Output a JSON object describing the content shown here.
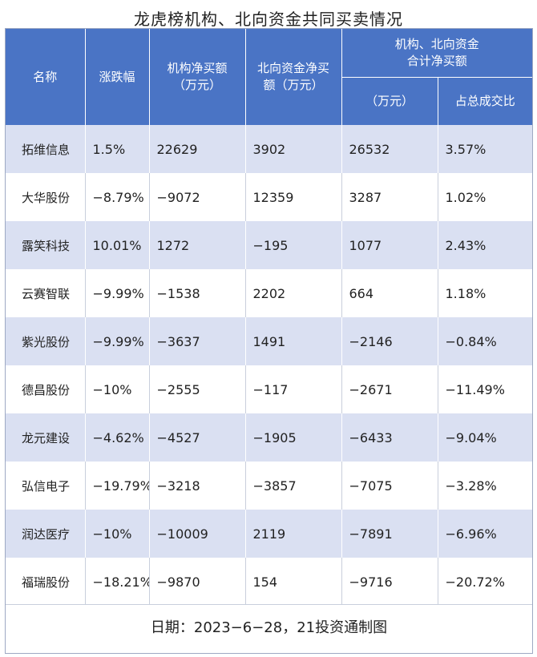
{
  "title": "龙虎榜机构、北向资金共同买卖情况",
  "headers": {
    "name": "名称",
    "change": "涨跌幅",
    "inst_net_line1": "机构净买额",
    "inst_net_line2": "（万元）",
    "north_net_line1": "北向资金净买",
    "north_net_line2": "额（万元）",
    "combined_group_line1": "机构、北向资金",
    "combined_group_line2": "合计净买额",
    "combined_amount": "（万元）",
    "combined_ratio": "占总成交比"
  },
  "rows": [
    {
      "name": "拓维信息",
      "change": "1.5%",
      "inst": "22629",
      "north": "3902",
      "total": "26532",
      "ratio": "3.57%"
    },
    {
      "name": "大华股份",
      "change": "−8.79%",
      "inst": "−9072",
      "north": "12359",
      "total": "3287",
      "ratio": "1.02%"
    },
    {
      "name": "露笑科技",
      "change": "10.01%",
      "inst": "1272",
      "north": "−195",
      "total": "1077",
      "ratio": "2.43%"
    },
    {
      "name": "云赛智联",
      "change": "−9.99%",
      "inst": "−1538",
      "north": "2202",
      "total": "664",
      "ratio": "1.18%"
    },
    {
      "name": "紫光股份",
      "change": "−9.99%",
      "inst": "−3637",
      "north": "1491",
      "total": "−2146",
      "ratio": "−0.84%"
    },
    {
      "name": "德昌股份",
      "change": "−10%",
      "inst": "−2555",
      "north": "−117",
      "total": "−2671",
      "ratio": "−11.49%"
    },
    {
      "name": "龙元建设",
      "change": "−4.62%",
      "inst": "−4527",
      "north": "−1905",
      "total": "−6433",
      "ratio": "−9.04%"
    },
    {
      "name": "弘信电子",
      "change": "−19.79%",
      "inst": "−3218",
      "north": "−3857",
      "total": "−7075",
      "ratio": "−3.28%"
    },
    {
      "name": "润达医疗",
      "change": "−10%",
      "inst": "−10009",
      "north": "2119",
      "total": "−7891",
      "ratio": "−6.96%"
    },
    {
      "name": "福瑞股份",
      "change": "−18.21%",
      "inst": "−9870",
      "north": "154",
      "total": "−9716",
      "ratio": "−20.72%"
    }
  ],
  "footer": "日期：2023−6−28，21投资通制图",
  "colors": {
    "header_bg": "#4a74c5",
    "row_alt_bg": "#dae0f2"
  }
}
